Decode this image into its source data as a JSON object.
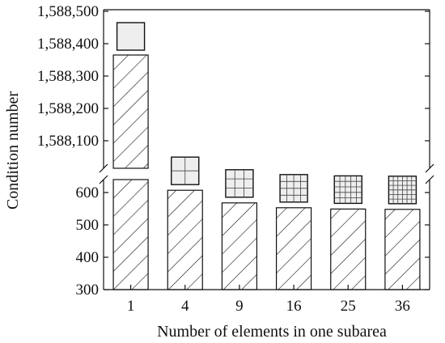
{
  "chart_data": {
    "type": "bar",
    "title": "",
    "xlabel": "Number of elements in one subarea",
    "ylabel": "Condition number",
    "categories": [
      "1",
      "4",
      "9",
      "16",
      "25",
      "36"
    ],
    "values": [
      1588365,
      607,
      568,
      553,
      549,
      548
    ],
    "y_axis_break": true,
    "lower_segment": {
      "ylim": [
        300,
        650
      ],
      "ticks": [
        300,
        400,
        500,
        600
      ],
      "tick_labels": [
        "300",
        "400",
        "500",
        "600"
      ]
    },
    "upper_segment": {
      "ylim": [
        1588000,
        1588500
      ],
      "ticks": [
        1588100,
        1588200,
        1588300,
        1588400,
        1588500
      ],
      "tick_labels": [
        "1,588,100",
        "1,588,200",
        "1,588,300",
        "1,588,400",
        "1,588,500"
      ]
    },
    "bar_fill": "diagonal hatch",
    "mesh_icons": {
      "description_by_category": "square icon above each bar subdivided into n equal cells",
      "grid_divisions": [
        1,
        2,
        3,
        4,
        5,
        6
      ]
    },
    "grid": false,
    "legend": "none",
    "colors": {
      "bar_stroke": "#111111",
      "hatch": "#111111",
      "icon_fill": "#eeeeee"
    }
  }
}
